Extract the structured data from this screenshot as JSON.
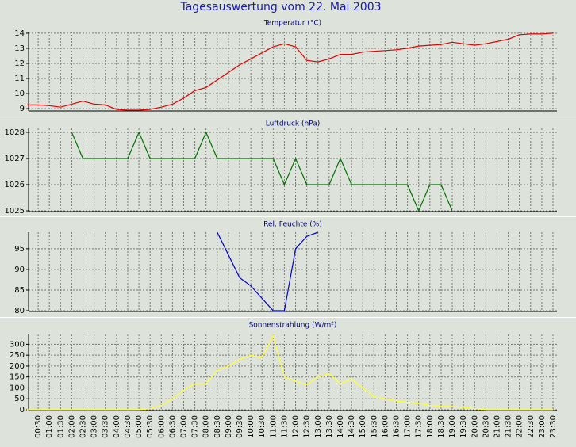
{
  "title": "Tagesauswertung vom 22. Mai 2003",
  "chart_data": [
    {
      "type": "line",
      "title": "Temperatur (°C)",
      "color": "#e00000",
      "values": [
        9.25,
        9.25,
        9.2,
        9.1,
        9.3,
        9.5,
        9.3,
        9.25,
        8.95,
        8.9,
        8.9,
        8.95,
        9.1,
        9.3,
        9.7,
        10.2,
        10.4,
        10.9,
        11.4,
        11.9,
        12.3,
        12.7,
        13.1,
        13.3,
        13.1,
        12.2,
        12.1,
        12.3,
        12.6,
        12.6,
        12.75,
        12.8,
        12.85,
        12.9,
        13.0,
        13.15,
        13.2,
        13.25,
        13.4,
        13.3,
        13.2,
        13.3,
        13.45,
        13.6,
        13.9,
        13.95,
        13.95,
        14.0
      ],
      "ylim": [
        8.9,
        14.1
      ],
      "yticks": [
        9,
        10,
        11,
        12,
        13,
        14
      ],
      "grid": true
    },
    {
      "type": "line",
      "title": "Luftdruck (hPa)",
      "color": "#007000",
      "values": [
        null,
        null,
        null,
        null,
        1028,
        1027,
        1027,
        1027,
        1027,
        1027,
        1028,
        1027,
        1027,
        1027,
        1027,
        1027,
        1028,
        1027,
        1027,
        1027,
        1027,
        1027,
        1027,
        1026,
        1027,
        1026,
        1026,
        1026,
        1027,
        1026,
        1026,
        1026,
        1026,
        1026,
        1026,
        1025,
        1026,
        1026,
        1025,
        null,
        null,
        null,
        null,
        null,
        null,
        null,
        null,
        null
      ],
      "ylim": [
        1025,
        1028.15
      ],
      "yticks": [
        1025,
        1026,
        1027,
        1028
      ],
      "grid": true
    },
    {
      "type": "line",
      "title": "Rel. Feuchte (%)",
      "color": "#0000d0",
      "values": [
        null,
        null,
        null,
        null,
        null,
        null,
        null,
        null,
        null,
        null,
        null,
        null,
        null,
        null,
        null,
        null,
        null,
        99,
        93.5,
        88,
        86,
        83,
        80,
        80,
        95,
        98,
        99,
        null,
        null,
        null,
        null,
        null,
        null,
        null,
        null,
        null,
        null,
        null,
        null,
        null,
        null,
        null,
        null,
        null,
        null,
        null,
        null,
        null
      ],
      "ylim": [
        80,
        99
      ],
      "yticks": [
        80,
        85,
        90,
        95
      ],
      "grid": true
    },
    {
      "type": "line",
      "title": "Sonnenstrahlung (W/m²)",
      "color": "#ffff30",
      "values": [
        0,
        0,
        0,
        0,
        0,
        0,
        0,
        0,
        0,
        0,
        0,
        5,
        20,
        50,
        90,
        120,
        120,
        180,
        200,
        230,
        250,
        240,
        340,
        150,
        130,
        115,
        150,
        165,
        120,
        140,
        100,
        60,
        50,
        40,
        35,
        30,
        20,
        15,
        15,
        10,
        5,
        0,
        0,
        0,
        0,
        0,
        0,
        0
      ],
      "ylim": [
        0,
        345
      ],
      "yticks": [
        0,
        50,
        100,
        150,
        200,
        250,
        300
      ],
      "grid": true,
      "categories": [
        null,
        "00:30",
        "01:00",
        "01:30",
        "02:00",
        "02:30",
        "03:00",
        "03:30",
        "04:00",
        "04:30",
        "05:00",
        "05:30",
        "06:00",
        "06:30",
        "07:00",
        "07:30",
        "08:00",
        "08:30",
        "09:00",
        "09:30",
        "10:00",
        "10:30",
        "11:00",
        "11:30",
        "12:00",
        "12:30",
        "13:00",
        "13:30",
        "14:00",
        "14:30",
        "15:00",
        "15:30",
        "16:00",
        "16:30",
        "17:00",
        "17:30",
        "18:00",
        "18:30",
        "19:00",
        "19:30",
        "20:00",
        "20:30",
        "21:00",
        "21:30",
        "22:00",
        "22:30",
        "23:00",
        "23:30"
      ]
    }
  ]
}
